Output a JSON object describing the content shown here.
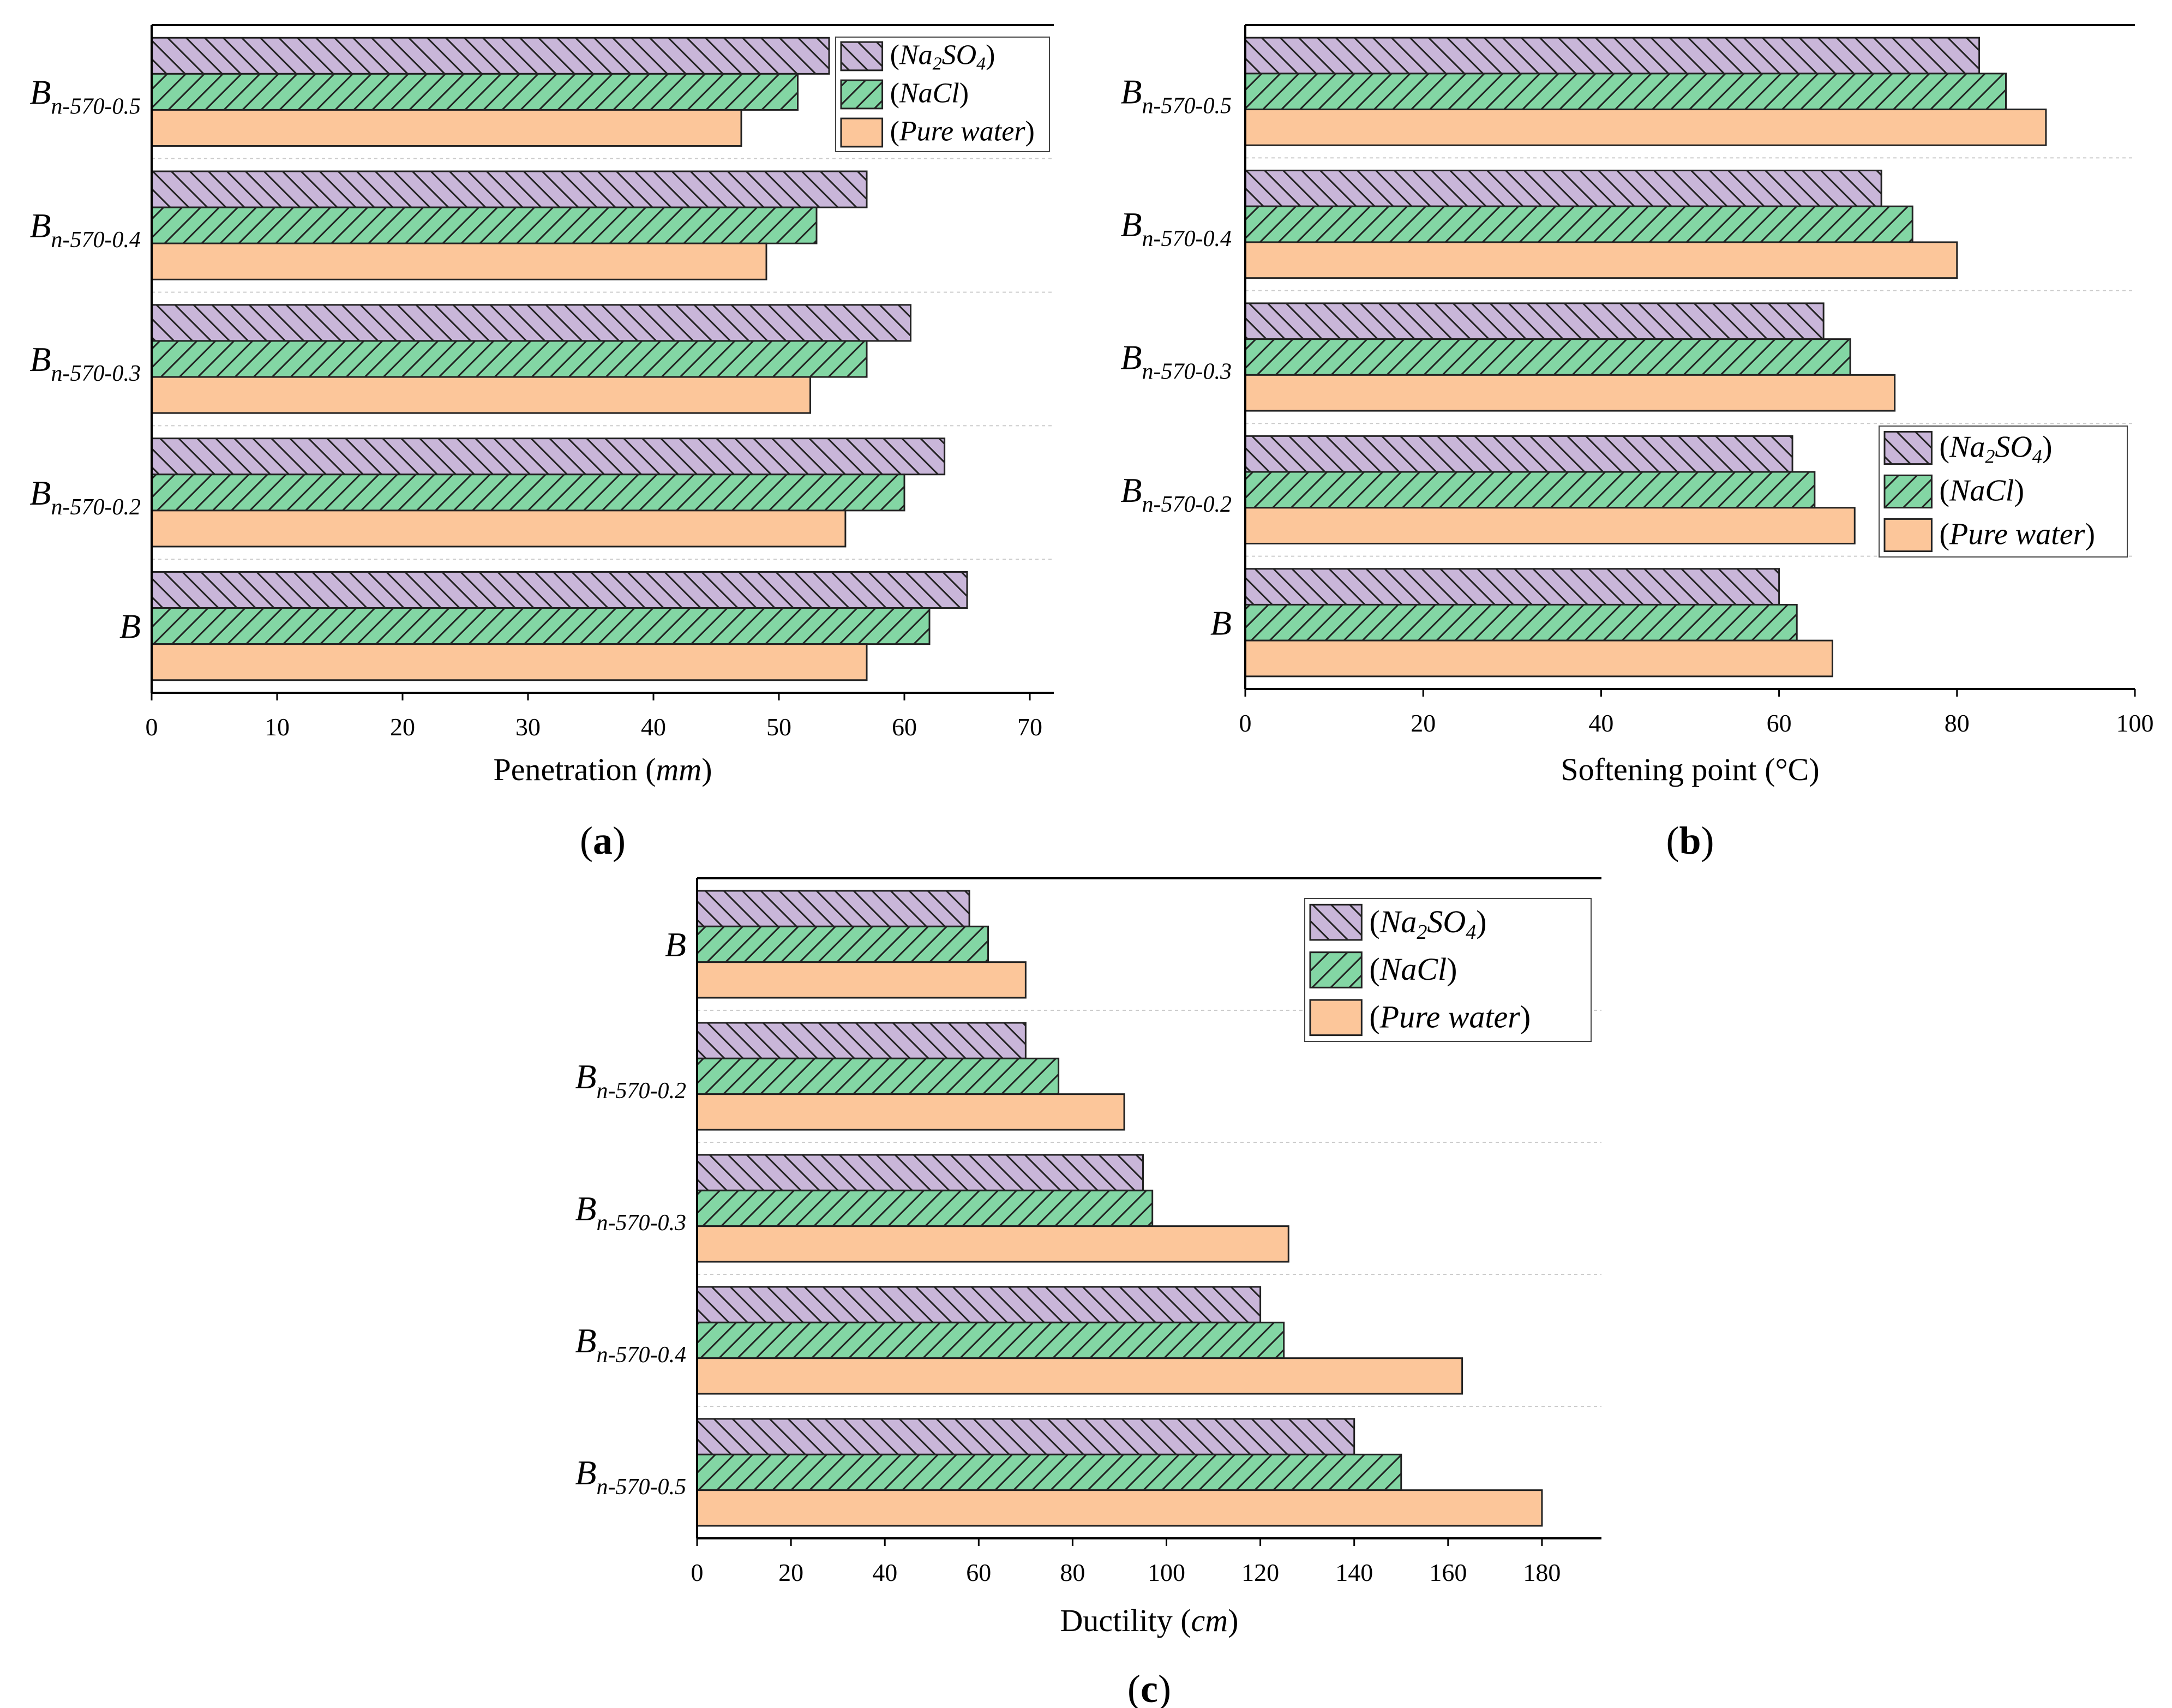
{
  "colors": {
    "na2so4": "#c9b6d9",
    "nacl": "#83d6a4",
    "pure": "#fcc69a",
    "bar_stroke": "#222222",
    "axis": "#000000",
    "grid": "#cccccc"
  },
  "legend_labels": {
    "na2so4": "(Na2SO4)",
    "nacl": "(NaCl)",
    "pure": "(Pure water)"
  },
  "chart_data": [
    {
      "id": "a",
      "type": "bar",
      "orientation": "horizontal",
      "panel_label": "(a)",
      "xlabel": "Penetration (mm)",
      "ylabel": "",
      "xlim": [
        0,
        70
      ],
      "xticks": [
        0,
        10,
        20,
        30,
        40,
        50,
        60,
        70
      ],
      "categories": [
        "Bn-570-0.5",
        "Bn-570-0.4",
        "Bn-570-0.3",
        "Bn-570-0.2",
        "B"
      ],
      "series": [
        {
          "name": "(Na2SO4)",
          "key": "na2so4",
          "values": [
            54,
            57,
            60.5,
            63.2,
            65
          ]
        },
        {
          "name": "(NaCl)",
          "key": "nacl",
          "values": [
            51.5,
            53,
            57,
            60,
            62
          ]
        },
        {
          "name": "(Pure water)",
          "key": "pure",
          "values": [
            47,
            49,
            52.5,
            55.3,
            57
          ]
        }
      ],
      "legend_position": "top-right",
      "grid": "horizontal dashed separators"
    },
    {
      "id": "b",
      "type": "bar",
      "orientation": "horizontal",
      "panel_label": "(b)",
      "xlabel": "Softening point (°C)",
      "ylabel": "",
      "xlim": [
        0,
        100
      ],
      "xticks": [
        0,
        20,
        40,
        60,
        80,
        100
      ],
      "categories": [
        "Bn-570-0.5",
        "Bn-570-0.4",
        "Bn-570-0.3",
        "Bn-570-0.2",
        "B"
      ],
      "series": [
        {
          "name": "(Na2SO4)",
          "key": "na2so4",
          "values": [
            82.5,
            71.5,
            65,
            61.5,
            60
          ]
        },
        {
          "name": "(NaCl)",
          "key": "nacl",
          "values": [
            85.5,
            75,
            68,
            64,
            62
          ]
        },
        {
          "name": "(Pure water)",
          "key": "pure",
          "values": [
            90,
            80,
            73,
            68.5,
            66
          ]
        }
      ],
      "legend_position": "lower-right",
      "grid": "horizontal dashed separators"
    },
    {
      "id": "c",
      "type": "bar",
      "orientation": "horizontal",
      "panel_label": "(c)",
      "xlabel": "Ductility (cm)",
      "ylabel": "",
      "xlim": [
        0,
        195
      ],
      "xticks": [
        0,
        20,
        40,
        60,
        80,
        100,
        120,
        140,
        160,
        180
      ],
      "categories": [
        "B",
        "Bn-570-0.2",
        "Bn-570-0.3",
        "Bn-570-0.4",
        "Bn-570-0.5"
      ],
      "series": [
        {
          "name": "(Na2SO4)",
          "key": "na2so4",
          "values": [
            58,
            70,
            95,
            120,
            140
          ]
        },
        {
          "name": "(NaCl)",
          "key": "nacl",
          "values": [
            62,
            77,
            97,
            125,
            150
          ]
        },
        {
          "name": "(Pure water)",
          "key": "pure",
          "values": [
            70,
            91,
            126,
            163,
            180
          ]
        }
      ],
      "legend_position": "top-right",
      "grid": "horizontal dashed separators"
    }
  ]
}
